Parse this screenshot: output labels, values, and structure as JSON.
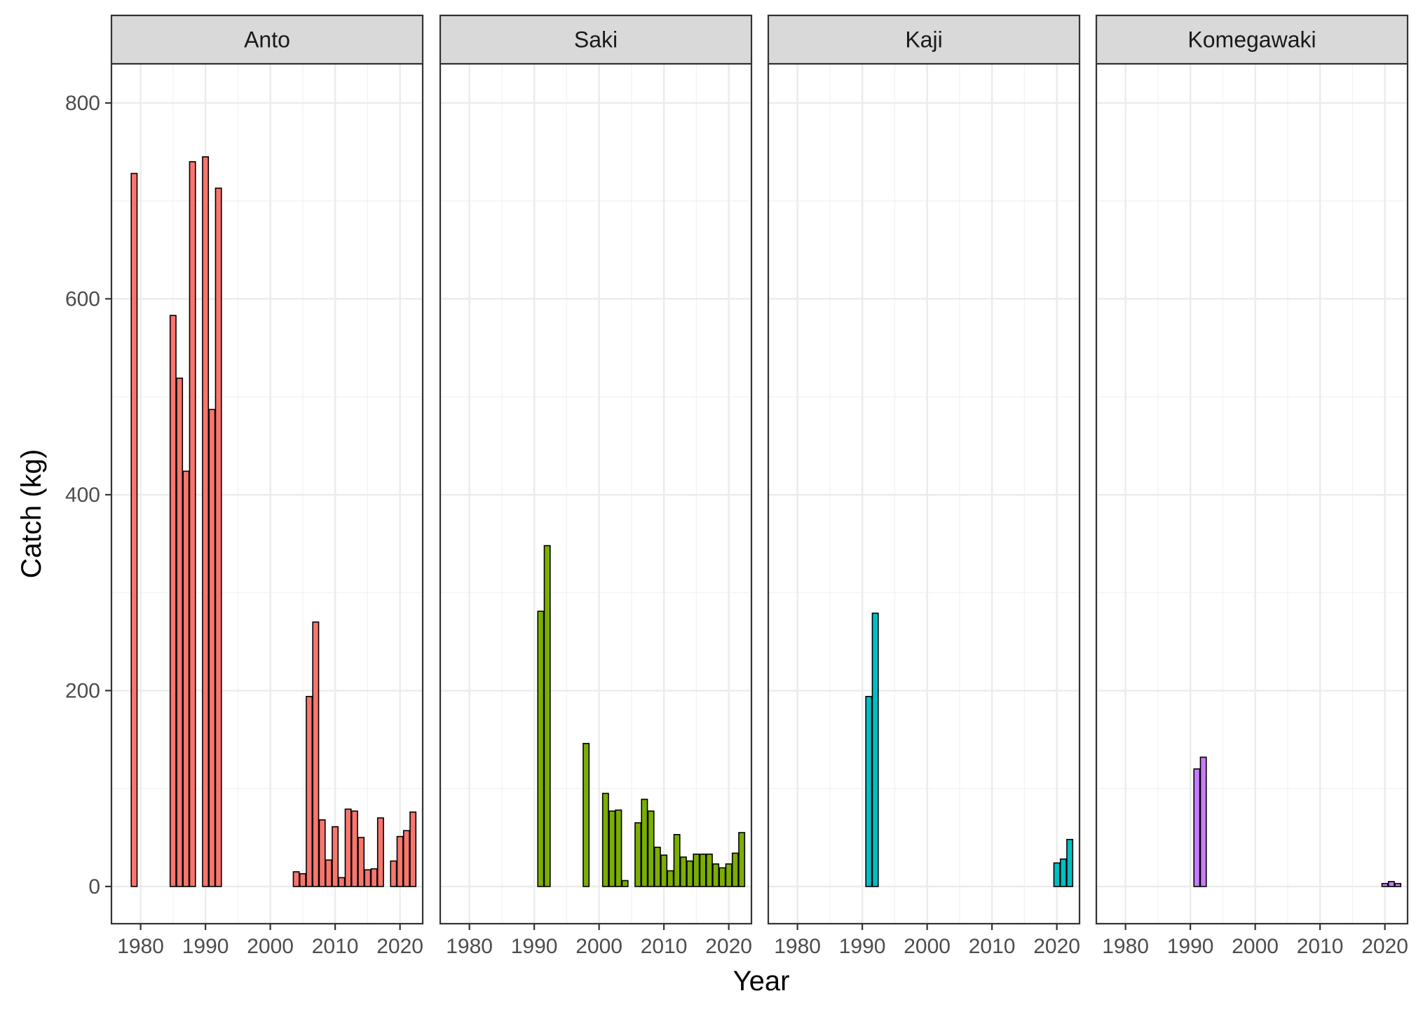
{
  "chart_data": {
    "type": "bar",
    "xlabel": "Year",
    "ylabel": "Catch (kg)",
    "xlim": [
      1975.5,
      2023.5
    ],
    "ylim": [
      -38,
      840
    ],
    "x_ticks": [
      1980,
      1990,
      2000,
      2010,
      2020
    ],
    "y_ticks": [
      0,
      200,
      400,
      600,
      800
    ],
    "grid": true,
    "legend": "none",
    "panels": [
      {
        "name": "Anto",
        "color": "#F8766D",
        "points": [
          {
            "x": 1979,
            "y": 728
          },
          {
            "x": 1985,
            "y": 583
          },
          {
            "x": 1986,
            "y": 519
          },
          {
            "x": 1987,
            "y": 424
          },
          {
            "x": 1988,
            "y": 740
          },
          {
            "x": 1990,
            "y": 745
          },
          {
            "x": 1991,
            "y": 487
          },
          {
            "x": 1992,
            "y": 713
          },
          {
            "x": 2004,
            "y": 15
          },
          {
            "x": 2005,
            "y": 13
          },
          {
            "x": 2006,
            "y": 194
          },
          {
            "x": 2007,
            "y": 270
          },
          {
            "x": 2008,
            "y": 68
          },
          {
            "x": 2009,
            "y": 27
          },
          {
            "x": 2010,
            "y": 61
          },
          {
            "x": 2011,
            "y": 9
          },
          {
            "x": 2012,
            "y": 79
          },
          {
            "x": 2013,
            "y": 77
          },
          {
            "x": 2014,
            "y": 50
          },
          {
            "x": 2015,
            "y": 17
          },
          {
            "x": 2016,
            "y": 18
          },
          {
            "x": 2017,
            "y": 70
          },
          {
            "x": 2019,
            "y": 26
          },
          {
            "x": 2020,
            "y": 51
          },
          {
            "x": 2021,
            "y": 57
          },
          {
            "x": 2022,
            "y": 76
          }
        ]
      },
      {
        "name": "Saki",
        "color": "#7CAE00",
        "points": [
          {
            "x": 1991,
            "y": 281
          },
          {
            "x": 1992,
            "y": 348
          },
          {
            "x": 1998,
            "y": 146
          },
          {
            "x": 2001,
            "y": 95
          },
          {
            "x": 2002,
            "y": 77
          },
          {
            "x": 2003,
            "y": 78
          },
          {
            "x": 2004,
            "y": 6
          },
          {
            "x": 2006,
            "y": 65
          },
          {
            "x": 2007,
            "y": 89
          },
          {
            "x": 2008,
            "y": 77
          },
          {
            "x": 2009,
            "y": 40
          },
          {
            "x": 2010,
            "y": 32
          },
          {
            "x": 2011,
            "y": 16
          },
          {
            "x": 2012,
            "y": 53
          },
          {
            "x": 2013,
            "y": 30
          },
          {
            "x": 2014,
            "y": 26
          },
          {
            "x": 2015,
            "y": 33
          },
          {
            "x": 2016,
            "y": 33
          },
          {
            "x": 2017,
            "y": 33
          },
          {
            "x": 2018,
            "y": 23
          },
          {
            "x": 2019,
            "y": 19
          },
          {
            "x": 2020,
            "y": 23
          },
          {
            "x": 2021,
            "y": 34
          },
          {
            "x": 2022,
            "y": 55
          }
        ]
      },
      {
        "name": "Kaji",
        "color": "#00BFC4",
        "points": [
          {
            "x": 1991,
            "y": 194
          },
          {
            "x": 1992,
            "y": 279
          },
          {
            "x": 2020,
            "y": 24
          },
          {
            "x": 2021,
            "y": 28
          },
          {
            "x": 2022,
            "y": 48
          }
        ]
      },
      {
        "name": "Komegawaki",
        "color": "#C77CFF",
        "points": [
          {
            "x": 1991,
            "y": 120
          },
          {
            "x": 1992,
            "y": 132
          },
          {
            "x": 2020,
            "y": 3
          },
          {
            "x": 2021,
            "y": 5
          },
          {
            "x": 2022,
            "y": 3
          }
        ]
      }
    ]
  }
}
